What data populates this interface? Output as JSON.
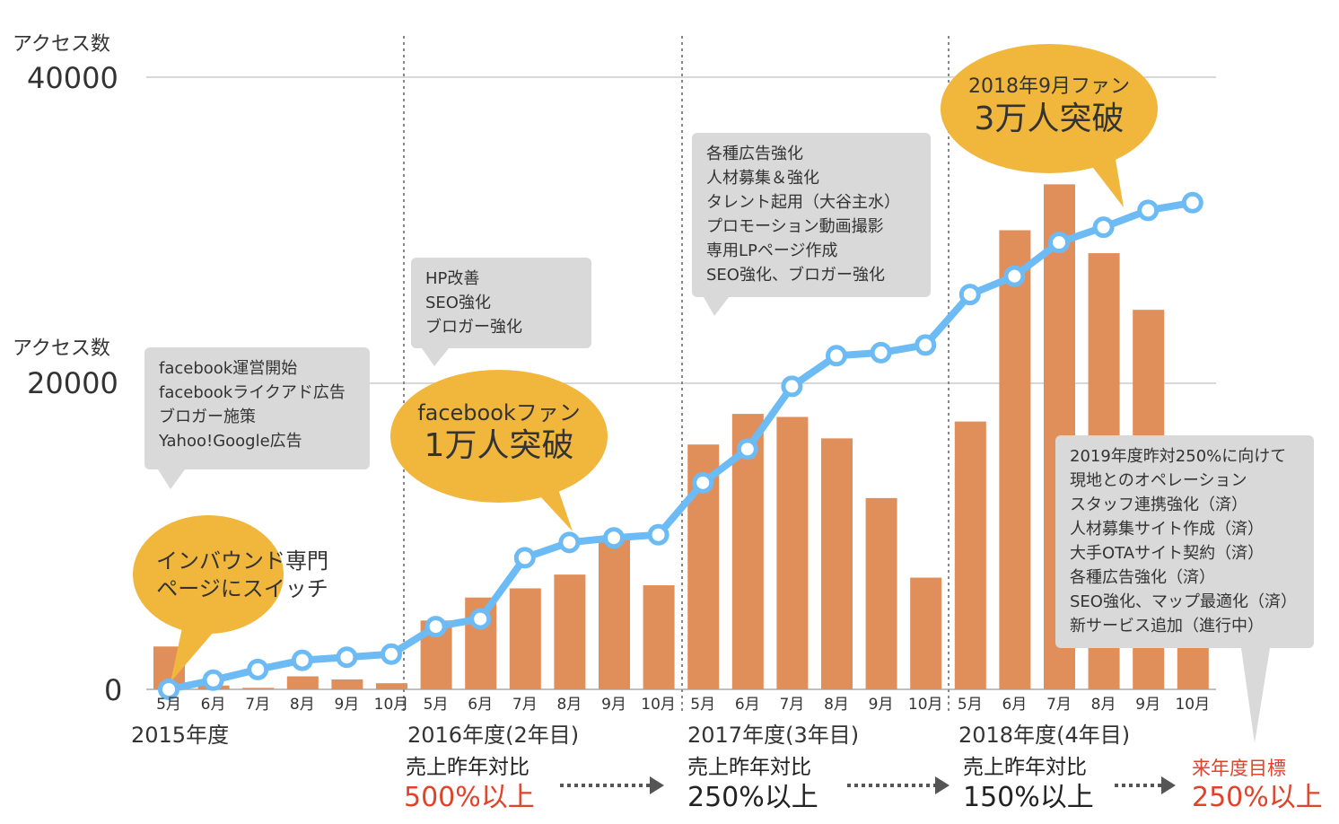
{
  "chart_data": {
    "type": "bar",
    "months": [
      "5月",
      "6月",
      "7月",
      "8月",
      "9月",
      "10月",
      "5月",
      "6月",
      "7月",
      "8月",
      "9月",
      "10月",
      "5月",
      "6月",
      "7月",
      "8月",
      "9月",
      "10月",
      "5月",
      "6月",
      "7月",
      "8月",
      "9月",
      "10月"
    ],
    "y_axis": {
      "top_label": "アクセス数",
      "mid_label": "アクセス数",
      "ticks": [
        "40000",
        "20000",
        "0"
      ],
      "ylim": [
        0,
        40000
      ],
      "grid": true
    },
    "series": [
      {
        "kind": "bar",
        "color": "#e08e5a",
        "values": [
          2800,
          250,
          100,
          850,
          650,
          400,
          4500,
          6000,
          6600,
          7500,
          10000,
          6800,
          16000,
          18000,
          17800,
          16400,
          12500,
          7300,
          17500,
          30000,
          33000,
          28500,
          24800,
          4000
        ]
      },
      {
        "kind": "line",
        "color": "#6dbbf5",
        "values": [
          0,
          600,
          1300,
          1900,
          2100,
          2300,
          4100,
          4600,
          8600,
          9600,
          9900,
          10100,
          13500,
          15700,
          19800,
          21800,
          22000,
          22500,
          25800,
          27000,
          29200,
          30200,
          31300,
          31800
        ]
      }
    ],
    "years": [
      {
        "label": "2015年度"
      },
      {
        "label": "2016年度(2年目)"
      },
      {
        "label": "2017年度(3年目)"
      },
      {
        "label": "2018年度(4年目)"
      }
    ]
  },
  "annotations": {
    "notes": [
      {
        "id": "note-2015",
        "lines": [
          "facebook運営開始",
          "facebookライクアド広告",
          "ブロガー施策",
          "Yahoo!Google広告"
        ]
      },
      {
        "id": "note-2016",
        "lines": [
          "HP改善",
          "SEO強化",
          "ブロガー強化"
        ]
      },
      {
        "id": "note-2017",
        "lines": [
          "各種広告強化",
          "人材募集＆強化",
          "タレント起用（大谷主水）",
          "プロモーション動画撮影",
          "専用LPページ作成",
          "SEO強化、ブロガー強化"
        ]
      },
      {
        "id": "note-2019",
        "lines": [
          "2019年度昨対250%に向けて",
          "現地とのオペレーション",
          "スタッフ連携強化（済）",
          "人材募集サイト作成（済）",
          "大手OTAサイト契約（済）",
          "各種広告強化（済）",
          "SEO強化、マップ最適化（済）",
          "新サービス追加（進行中）"
        ]
      }
    ],
    "bubbles": {
      "inbound": {
        "line1": "インバウンド専門",
        "line2": "ページにスイッチ"
      },
      "fan10k": {
        "line1": "facebookファン",
        "line2": "1万人突破"
      },
      "fan30k": {
        "line1": "2018年9月ファン",
        "line2": "3万人突破"
      }
    }
  },
  "sales": [
    {
      "label": "売上昨年対比",
      "value": "500%以上"
    },
    {
      "label": "売上昨年対比",
      "value": "250%以上"
    },
    {
      "label": "売上昨年対比",
      "value": "150%以上"
    },
    {
      "label": "来年度目標",
      "value": "250%以上"
    }
  ],
  "colors": {
    "accent_red": "#e0432a",
    "bubble": "#f0b73c",
    "grid": "#cccccc",
    "note_bg": "#d9d9d9"
  }
}
